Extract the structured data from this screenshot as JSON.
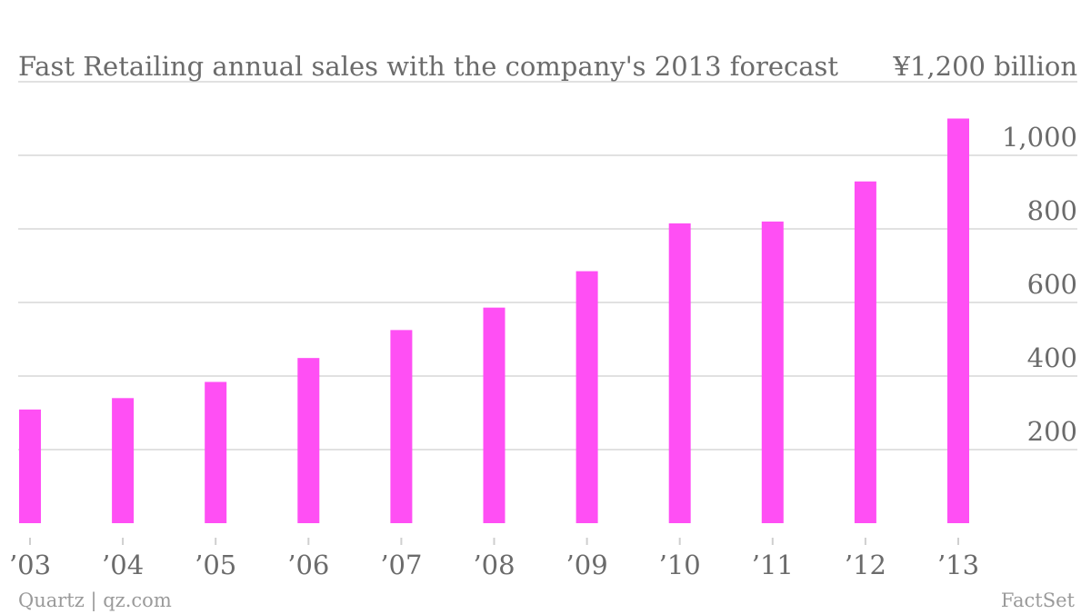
{
  "chart_data": {
    "type": "bar",
    "title": "Fast Retailing annual sales with the company's 2013 forecast",
    "unit_label": "¥1,200 billion",
    "categories": [
      "’03",
      "’04",
      "’05",
      "’06",
      "’07",
      "’08",
      "’09",
      "’10",
      "’11",
      "’12",
      "’13"
    ],
    "series": [
      {
        "values": [
          309,
          340,
          384,
          449,
          525,
          586,
          685,
          815,
          820,
          929,
          1100
        ]
      }
    ],
    "ylim": [
      0,
      1200
    ],
    "yticks": [
      200,
      400,
      600,
      800,
      1000
    ],
    "ytick_labels": [
      "200",
      "400",
      "600",
      "800",
      "1,000"
    ],
    "grid": true,
    "bar_color": "#ff4ff4"
  },
  "footer": {
    "source_left": "Quartz | qz.com",
    "source_right": "FactSet"
  }
}
